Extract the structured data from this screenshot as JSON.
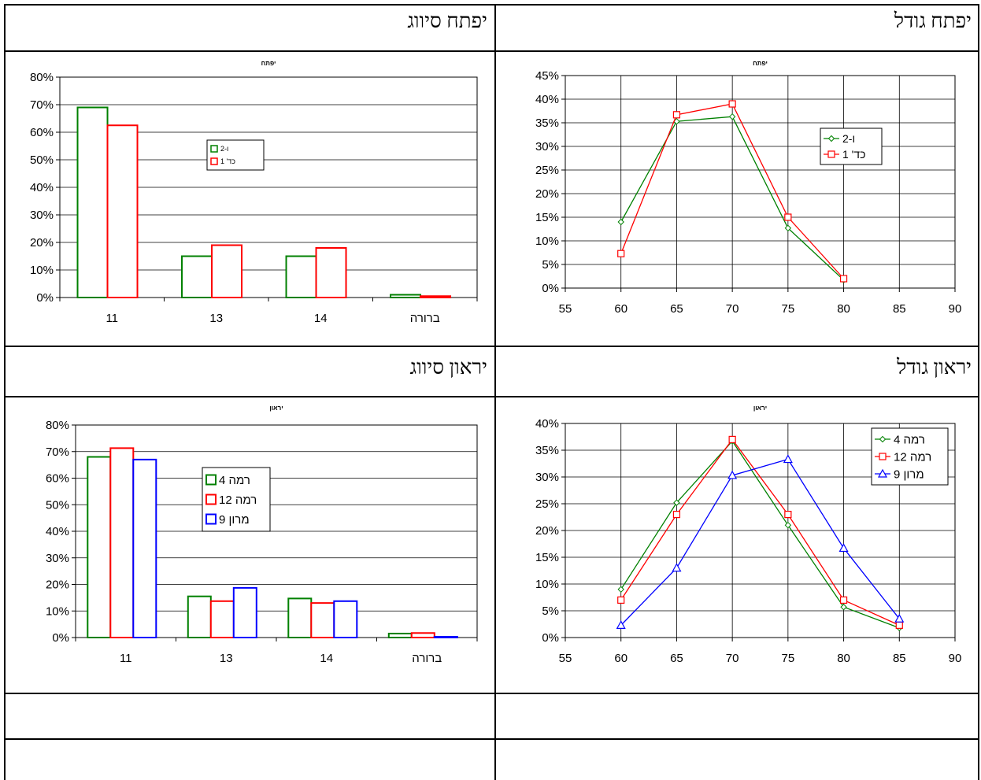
{
  "headers": {
    "tl": "יפתח סיווג",
    "tr": "יפתח גודל",
    "bl": "יראון סיווג",
    "br": "יראון גודל"
  },
  "colors": {
    "green": "#008000",
    "red": "#ff0000",
    "blue": "#0000ff"
  },
  "chart_data": [
    {
      "id": "yiftah-class",
      "type": "bar",
      "title": "יפתח",
      "categories": [
        "11",
        "13",
        "14",
        "ברורה"
      ],
      "ylim": [
        0,
        80
      ],
      "yticks": [
        "0%",
        "10%",
        "20%",
        "30%",
        "40%",
        "50%",
        "60%",
        "70%",
        "80%"
      ],
      "grid": true,
      "legend_position": "center",
      "series": [
        {
          "name": "ו-2",
          "color": "green",
          "values": [
            69,
            15,
            15,
            1
          ]
        },
        {
          "name": "כד' 1",
          "color": "red",
          "values": [
            62.5,
            19,
            18,
            0.5
          ]
        }
      ]
    },
    {
      "id": "yiftah-size",
      "type": "line",
      "title": "יפתח",
      "xlim": [
        55,
        90
      ],
      "xticks": [
        "55",
        "60",
        "65",
        "70",
        "75",
        "80",
        "85",
        "90"
      ],
      "ylim": [
        0,
        45
      ],
      "yticks": [
        "0%",
        "5%",
        "10%",
        "15%",
        "20%",
        "25%",
        "30%",
        "35%",
        "40%",
        "45%"
      ],
      "grid": true,
      "legend_position": "right",
      "series": [
        {
          "name": "ו-2",
          "color": "green",
          "marker": "diamond",
          "x": [
            60,
            65,
            70,
            75,
            80
          ],
          "y": [
            14,
            35.3,
            36.3,
            12.7,
            1.7
          ]
        },
        {
          "name": "כד' 1",
          "color": "red",
          "marker": "square",
          "x": [
            60,
            65,
            70,
            75,
            80
          ],
          "y": [
            7.3,
            36.7,
            39,
            15,
            2
          ]
        }
      ]
    },
    {
      "id": "yiraon-class",
      "type": "bar",
      "title": "יראון",
      "categories": [
        "11",
        "13",
        "14",
        "ברורה"
      ],
      "ylim": [
        0,
        80
      ],
      "yticks": [
        "0%",
        "10%",
        "20%",
        "30%",
        "40%",
        "50%",
        "60%",
        "70%",
        "80%"
      ],
      "grid": true,
      "legend_position": "center",
      "series": [
        {
          "name": "רמה 4",
          "color": "green",
          "values": [
            68,
            15.5,
            14.7,
            1.5
          ]
        },
        {
          "name": "רמה 12",
          "color": "red",
          "values": [
            71.3,
            13.7,
            13,
            1.7
          ]
        },
        {
          "name": "מרון 9",
          "color": "blue",
          "values": [
            67,
            18.7,
            13.7,
            0.3
          ]
        }
      ]
    },
    {
      "id": "yiraon-size",
      "type": "line",
      "title": "יראון",
      "xlim": [
        55,
        90
      ],
      "xticks": [
        "55",
        "60",
        "65",
        "70",
        "75",
        "80",
        "85",
        "90"
      ],
      "ylim": [
        0,
        40
      ],
      "yticks": [
        "0%",
        "5%",
        "10%",
        "15%",
        "20%",
        "25%",
        "30%",
        "35%",
        "40%"
      ],
      "grid": true,
      "legend_position": "top-right",
      "series": [
        {
          "name": "רמה 4",
          "color": "green",
          "marker": "diamond",
          "x": [
            60,
            65,
            70,
            75,
            80,
            85
          ],
          "y": [
            9,
            25.2,
            36.7,
            21,
            5.7,
            1.8
          ]
        },
        {
          "name": "רמה 12",
          "color": "red",
          "marker": "square",
          "x": [
            60,
            65,
            70,
            75,
            80,
            85
          ],
          "y": [
            7,
            23,
            37,
            23,
            7,
            2.3
          ]
        },
        {
          "name": "מרון 9",
          "color": "blue",
          "marker": "triangle",
          "x": [
            60,
            65,
            70,
            75,
            80,
            85
          ],
          "y": [
            2.3,
            13,
            30.3,
            33.3,
            16.7,
            3.5
          ]
        }
      ]
    }
  ]
}
